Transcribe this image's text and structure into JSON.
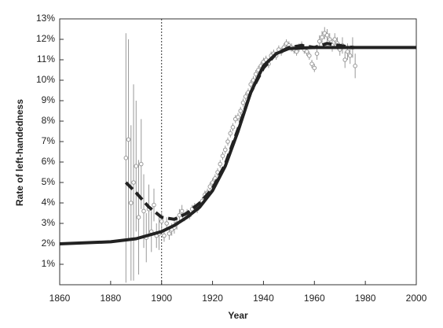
{
  "chart_data": {
    "type": "scatter",
    "xlabel": "Year",
    "ylabel": "Rate of left-handedness",
    "xlim": [
      1860,
      2000
    ],
    "xticks": [
      1860,
      1880,
      1900,
      1920,
      1940,
      1960,
      1980,
      2000
    ],
    "ylim": [
      0,
      13
    ],
    "yticks": [
      {
        "value": 1,
        "label": "1%"
      },
      {
        "value": 2,
        "label": "2%"
      },
      {
        "value": 3,
        "label": "3%"
      },
      {
        "value": 4,
        "label": "4%"
      },
      {
        "value": 5,
        "label": "5%"
      },
      {
        "value": 6,
        "label": "6%"
      },
      {
        "value": 7,
        "label": "7%"
      },
      {
        "value": 8,
        "label": "8%"
      },
      {
        "value": 9,
        "label": "9%"
      },
      {
        "value": 10,
        "label": "10%"
      },
      {
        "value": 11,
        "label": "11%"
      },
      {
        "value": 12,
        "label": "12%"
      },
      {
        "value": 13,
        "label": "13%"
      }
    ],
    "vline": 1900,
    "series": [
      {
        "type": "scatter",
        "color": "#999999",
        "x": [
          1886,
          1887,
          1888,
          1889,
          1890,
          1891,
          1892,
          1893,
          1894,
          1895,
          1896,
          1897,
          1898,
          1899,
          1900,
          1901,
          1902,
          1903,
          1904,
          1905,
          1906,
          1907,
          1908,
          1909,
          1910,
          1911,
          1912,
          1913,
          1914,
          1915,
          1916,
          1917,
          1918,
          1919,
          1920,
          1921,
          1922,
          1923,
          1924,
          1925,
          1926,
          1927,
          1928,
          1929,
          1930,
          1931,
          1932,
          1933,
          1934,
          1935,
          1936,
          1937,
          1938,
          1939,
          1940,
          1941,
          1942,
          1943,
          1944,
          1945,
          1946,
          1947,
          1948,
          1949,
          1950,
          1951,
          1952,
          1953,
          1954,
          1955,
          1956,
          1957,
          1958,
          1959,
          1960,
          1961,
          1962,
          1963,
          1964,
          1965,
          1966,
          1967,
          1968,
          1969,
          1970,
          1971,
          1972,
          1973,
          1974,
          1975,
          1976
        ],
        "values": [
          6.2,
          7.1,
          4.0,
          5.0,
          5.8,
          3.3,
          5.9,
          3.6,
          2.3,
          3.7,
          2.6,
          3.9,
          2.4,
          2.5,
          3.1,
          2.4,
          3.0,
          2.5,
          2.7,
          2.8,
          3.0,
          3.4,
          3.6,
          3.3,
          3.5,
          3.4,
          3.7,
          3.8,
          3.7,
          3.9,
          4.1,
          4.4,
          4.5,
          4.8,
          5.0,
          5.2,
          5.5,
          5.9,
          6.3,
          6.6,
          7.0,
          7.4,
          7.7,
          8.1,
          8.2,
          8.5,
          8.9,
          9.2,
          9.4,
          9.8,
          10.0,
          10.3,
          10.5,
          10.7,
          10.9,
          11.0,
          10.8,
          11.2,
          11.3,
          11.2,
          11.5,
          11.4,
          11.6,
          11.8,
          11.7,
          11.6,
          11.5,
          11.4,
          11.6,
          11.7,
          11.5,
          11.4,
          11.2,
          10.8,
          10.6,
          11.3,
          11.9,
          12.1,
          12.3,
          12.2,
          12.0,
          11.7,
          12.0,
          11.8,
          11.5,
          11.7,
          11.0,
          11.4,
          11.2,
          11.6,
          10.7
        ],
        "errors": [
          6.1,
          4.9,
          3.8,
          4.8,
          3.2,
          2.8,
          2.2,
          1.8,
          1.2,
          1.2,
          1.0,
          0.8,
          0.6,
          0.8,
          0.5,
          0.3,
          0.3,
          0.3,
          0.3,
          0.3,
          0.3,
          0.3,
          0.3,
          0.2,
          0.2,
          0.2,
          0.2,
          0.2,
          0.2,
          0.2,
          0.2,
          0.2,
          0.2,
          0.2,
          0.2,
          0.2,
          0.2,
          0.2,
          0.2,
          0.2,
          0.2,
          0.2,
          0.2,
          0.2,
          0.2,
          0.2,
          0.2,
          0.2,
          0.2,
          0.2,
          0.2,
          0.2,
          0.2,
          0.2,
          0.2,
          0.2,
          0.2,
          0.2,
          0.2,
          0.2,
          0.2,
          0.2,
          0.2,
          0.2,
          0.2,
          0.2,
          0.2,
          0.2,
          0.2,
          0.2,
          0.2,
          0.2,
          0.2,
          0.2,
          0.2,
          0.3,
          0.3,
          0.3,
          0.3,
          0.3,
          0.3,
          0.3,
          0.3,
          0.3,
          0.3,
          0.4,
          0.4,
          0.4,
          0.4,
          0.5,
          0.6
        ]
      },
      {
        "type": "line",
        "color": "#222222",
        "dashed": false,
        "x": [
          1860,
          1880,
          1890,
          1900,
          1905,
          1910,
          1915,
          1920,
          1925,
          1930,
          1935,
          1940,
          1945,
          1950,
          1960,
          1970,
          2000
        ],
        "values": [
          2.0,
          2.1,
          2.25,
          2.6,
          2.9,
          3.3,
          3.8,
          4.6,
          5.8,
          7.5,
          9.4,
          10.7,
          11.3,
          11.55,
          11.6,
          11.6,
          11.6
        ]
      },
      {
        "type": "line",
        "color": "#222222",
        "dashed": true,
        "x": [
          1886,
          1890,
          1895,
          1900,
          1905,
          1910,
          1915,
          1920,
          1925,
          1930,
          1935,
          1940,
          1945,
          1950,
          1955,
          1960,
          1965,
          1970,
          1975
        ],
        "values": [
          5.0,
          4.5,
          3.8,
          3.3,
          3.2,
          3.5,
          4.0,
          4.7,
          5.9,
          7.6,
          9.4,
          10.6,
          11.3,
          11.6,
          11.7,
          11.6,
          11.8,
          11.7,
          11.6
        ]
      }
    ]
  }
}
